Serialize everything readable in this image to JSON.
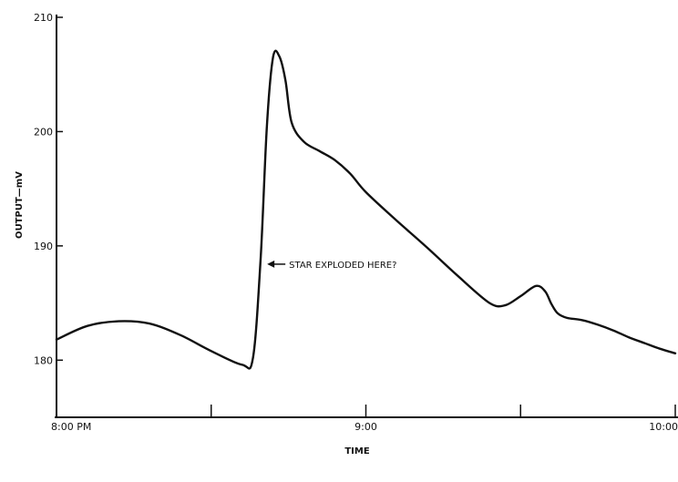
{
  "chart_data": {
    "type": "line",
    "title": "",
    "xlabel": "TIME",
    "ylabel": "OUTPUT—mV",
    "ylim": [
      175,
      210
    ],
    "y_ticks": [
      {
        "value": 210,
        "label": "210"
      },
      {
        "value": 200,
        "label": "200"
      },
      {
        "value": 190,
        "label": "190"
      },
      {
        "value": 180,
        "label": "180"
      }
    ],
    "x_range_hours": [
      8.0,
      10.0
    ],
    "x_ticks": [
      {
        "value": 8.0,
        "label": "8:00 PM"
      },
      {
        "value": 8.5,
        "label": ""
      },
      {
        "value": 9.0,
        "label": "9:00"
      },
      {
        "value": 9.5,
        "label": ""
      },
      {
        "value": 10.0,
        "label": "10:00"
      }
    ],
    "grid": false,
    "series": [
      {
        "color": "#111111",
        "x": [
          8.0,
          8.1,
          8.2,
          8.3,
          8.4,
          8.5,
          8.6,
          8.635,
          8.66,
          8.68,
          8.7,
          8.72,
          8.74,
          8.76,
          8.8,
          8.85,
          8.9,
          8.95,
          9.0,
          9.1,
          9.2,
          9.3,
          9.4,
          9.45,
          9.5,
          9.55,
          9.58,
          9.6,
          9.62,
          9.65,
          9.7,
          9.75,
          9.8,
          9.85,
          9.9,
          9.95,
          10.0
        ],
        "y": [
          181.8,
          183.0,
          183.4,
          183.2,
          182.2,
          180.8,
          179.6,
          180.2,
          189.0,
          200.5,
          206.5,
          206.6,
          204.5,
          200.8,
          199.1,
          198.3,
          197.5,
          196.3,
          194.7,
          192.2,
          189.8,
          187.3,
          185.0,
          184.8,
          185.6,
          186.5,
          186.0,
          184.9,
          184.1,
          183.7,
          183.5,
          183.1,
          182.6,
          182.0,
          181.5,
          181.0,
          180.6
        ]
      }
    ],
    "annotations": [
      {
        "text": "STAR EXPLODED HERE?",
        "x": 8.675,
        "y": 188.4
      }
    ]
  }
}
